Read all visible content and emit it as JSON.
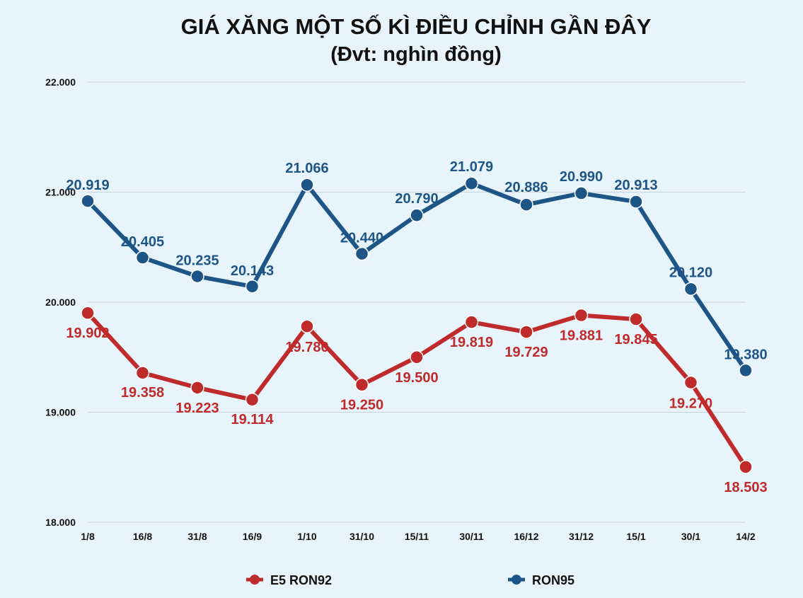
{
  "chart_data": {
    "type": "line",
    "title": "GIÁ XĂNG MỘT SỐ KÌ ĐIỀU CHỈNH GẦN ĐÂY",
    "subtitle": "(Đvt: nghìn đồng)",
    "categories": [
      "1/8",
      "16/8",
      "31/8",
      "16/9",
      "1/10",
      "31/10",
      "15/11",
      "30/11",
      "16/12",
      "31/12",
      "15/1",
      "30/1",
      "14/2"
    ],
    "yticks": [
      "22.000",
      "21.000",
      "20.000",
      "19.000",
      "18.000"
    ],
    "ytick_values": [
      22000,
      21000,
      20000,
      19000,
      18000
    ],
    "ylim": [
      18000,
      22000
    ],
    "grid": true,
    "legend_position": "bottom",
    "series": [
      {
        "name": "E5 RON92",
        "color": "#bf2a2a",
        "values": [
          19902,
          19358,
          19223,
          19114,
          19780,
          19250,
          19500,
          19819,
          19729,
          19881,
          19845,
          19270,
          18503
        ],
        "labels": [
          "19.902",
          "19.358",
          "19.223",
          "19.114",
          "19.780",
          "19.250",
          "19.500",
          "19.819",
          "19.729",
          "19.881",
          "19.845",
          "19.270",
          "18.503"
        ]
      },
      {
        "name": "RON95",
        "color": "#1d5586",
        "values": [
          20919,
          20405,
          20235,
          20143,
          21066,
          20440,
          20790,
          21079,
          20886,
          20990,
          20913,
          20120,
          19380
        ],
        "labels": [
          "20.919",
          "20.405",
          "20.235",
          "20.143",
          "21.066",
          "20.440",
          "20.790",
          "21.079",
          "20.886",
          "20.990",
          "20.913",
          "20.120",
          "19.380"
        ]
      }
    ]
  }
}
